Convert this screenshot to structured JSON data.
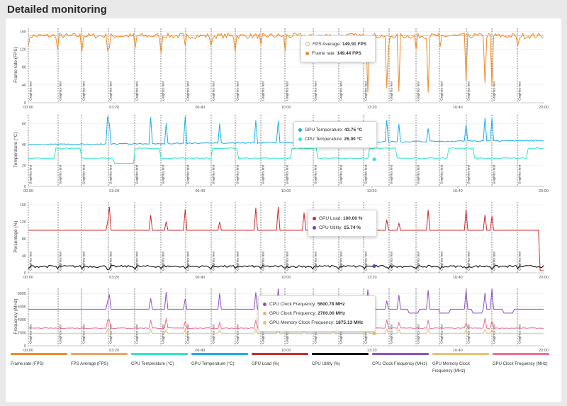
{
  "header": {
    "title": "Detailed monitoring"
  },
  "x_ticks": [
    "00:00",
    "03:20",
    "06:40",
    "10:00",
    "13:20",
    "16:40",
    "20:00"
  ],
  "annotation_label": "Graphics test",
  "chart_data": [
    {
      "type": "line",
      "ylabel": "Frame rate (FPS)",
      "ylim": [
        0,
        170
      ],
      "yticks": [
        0,
        40,
        80,
        120,
        160
      ],
      "xlim_minutes": [
        0,
        1200
      ],
      "series": [
        {
          "name": "FPS Average",
          "color": "#f5a25d",
          "baseline": 149.91
        },
        {
          "name": "Frame rate",
          "color": "#f08a24",
          "baseline": 150,
          "noise": 6
        }
      ],
      "tooltip": [
        {
          "label": "FPS Average:",
          "value": "149.91 FPS",
          "color": "#f5a25d"
        },
        {
          "label": "Frame rate:",
          "value": "149.44 FPS",
          "color": "#f08a24"
        }
      ]
    },
    {
      "type": "line",
      "ylabel": "Temperature (°C)",
      "ylim": [
        0,
        70
      ],
      "yticks": [
        0,
        20,
        40,
        60
      ],
      "xlim_minutes": [
        0,
        1200
      ],
      "series": [
        {
          "name": "GPU Temperature",
          "color": "#1aaeea",
          "baseline": 43
        },
        {
          "name": "CPU Temperature",
          "color": "#2ee8c0",
          "baseline": 27
        }
      ],
      "tooltip": [
        {
          "label": "GPU Temperature:",
          "value": "43.75 °C",
          "color": "#1aaeea"
        },
        {
          "label": "CPU Temperature:",
          "value": "26.00 °C",
          "color": "#2ee8c0"
        }
      ]
    },
    {
      "type": "line",
      "ylabel": "Percentage (%)",
      "ylim": [
        0,
        170
      ],
      "yticks": [
        0,
        40,
        80,
        120,
        160
      ],
      "xlim_minutes": [
        0,
        1200
      ],
      "series": [
        {
          "name": "GPU Load",
          "color": "#cc2b2b",
          "baseline": 100
        },
        {
          "name": "CPU Utility",
          "color": "#111111",
          "baseline": 15
        }
      ],
      "tooltip": [
        {
          "label": "GPU Load:",
          "value": "100.00 %",
          "color": "#cc2b2b"
        },
        {
          "label": "CPU Utility:",
          "value": "15.74 %",
          "color": "#6f42c1"
        }
      ]
    },
    {
      "type": "line",
      "ylabel": "Frequency (MHz)",
      "ylim": [
        0,
        9000
      ],
      "yticks": [
        0,
        2000,
        4000,
        6000,
        8000
      ],
      "xlim_minutes": [
        0,
        1200
      ],
      "series": [
        {
          "name": "CPU Clock Frequency",
          "color": "#8e4fc5",
          "baseline": 5600
        },
        {
          "name": "GPU Clock Frequency",
          "color": "#ef6e8c",
          "baseline": 2700
        },
        {
          "name": "GPU Memory Clock Frequency",
          "color": "#e9c46a",
          "baseline": 1875
        }
      ],
      "tooltip": [
        {
          "label": "CPU Clock Frequency:",
          "value": "5600.78 MHz",
          "color": "#8e4fc5"
        },
        {
          "label": "GPU Clock Frequency:",
          "value": "2700.00 MHz",
          "color": "#f4a582"
        },
        {
          "label": "GPU Memory Clock Frequency:",
          "value": "1875.13 MHz",
          "color": "#e9c46a"
        }
      ]
    }
  ],
  "legend": [
    {
      "label": "Frame rate (FPS)",
      "color": "#f08a24"
    },
    {
      "label": "FPS Average (FPS)",
      "color": "#f5a25d"
    },
    {
      "label": "CPU Temperature (°C)",
      "color": "#2ee8c0"
    },
    {
      "label": "GPU Temperature (°C)",
      "color": "#1aaeea"
    },
    {
      "label": "GPU Load (%)",
      "color": "#cc2b2b"
    },
    {
      "label": "CPU Utility (%)",
      "color": "#111111"
    },
    {
      "label": "CPU Clock Frequency (MHz)",
      "color": "#8e4fc5"
    },
    {
      "label": "GPU Memory Clock Frequency (MHz)",
      "color": "#e9c46a"
    },
    {
      "label": "GPU Clock Frequency (MHz)",
      "color": "#ef6e8c"
    }
  ]
}
